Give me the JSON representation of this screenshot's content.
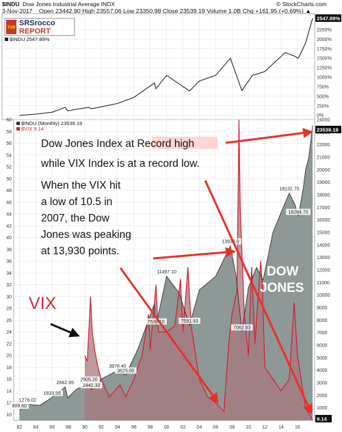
{
  "header": {
    "symbol": "$INDU",
    "name": "Dow Jones Industrial Average INDX",
    "date": "3-Nov-2017",
    "quote": "Open 23442.90  High 23557.06  Low 23350.98  Close 23539.19  Volume 1.0B  Chg +161.95 (+0.69%) ▲",
    "source": "© StockCharts.com",
    "logo_text": "SRSrocco",
    "logo_sub": "REPORT",
    "logo_badge": "TSR"
  },
  "colors": {
    "dow_fill": "#8d9897",
    "dow_line": "#222222",
    "vix_line": "#d21f2e",
    "vix_fill": "#a8787e",
    "arrow": "#e8302a",
    "vix_label": "#d8283a",
    "dow_label": "#ffffff",
    "highlight": "#ffd5d5"
  },
  "chart_data": [
    {
      "type": "line",
      "title": "$INDU 2547.89%",
      "legend": "top-left",
      "grid": true,
      "ylim": [
        -60,
        2600
      ],
      "y_ticks": [
        "0%",
        "250%",
        "500%",
        "750%",
        "1000%",
        "1250%",
        "1500%",
        "1750%",
        "2000%",
        "2250%",
        "2547.89%"
      ],
      "x_ticks": [
        "82",
        "84",
        "86",
        "88",
        "90",
        "92",
        "94",
        "96",
        "98",
        "00",
        "02",
        "04",
        "06",
        "08",
        "10",
        "12",
        "14",
        "16"
      ],
      "series": [
        {
          "name": "$INDU 2547.89%",
          "x": [
            1982.0,
            1984.0,
            1986.0,
            1987.6,
            1987.9,
            1990.5,
            1990.8,
            1994.0,
            1996.0,
            1998.5,
            1998.7,
            2000.0,
            2002.8,
            2004.0,
            2006.0,
            2007.8,
            2009.2,
            2010.5,
            2012.0,
            2013.0,
            2014.5,
            2015.7,
            2016.1,
            2017.0,
            2017.85
          ],
          "values": [
            0,
            30,
            80,
            210,
            120,
            210,
            170,
            310,
            470,
            850,
            700,
            1050,
            640,
            900,
            1050,
            1500,
            650,
            1050,
            1150,
            1350,
            1650,
            1550,
            1500,
            1900,
            2547.89
          ]
        }
      ]
    },
    {
      "type": "area",
      "title": "$INDU (Monthly) 23539.19",
      "legend": "top-left",
      "grid": true,
      "y_left_range": [
        9,
        60
      ],
      "y_left_ticks": [
        "10",
        "12",
        "14",
        "16",
        "18",
        "20",
        "22",
        "24",
        "26",
        "28",
        "30",
        "32",
        "34",
        "36",
        "38",
        "40",
        "42",
        "44",
        "46",
        "48",
        "50",
        "52",
        "54",
        "56",
        "58",
        "60"
      ],
      "y_right_range": [
        0,
        24000
      ],
      "y_right_ticks": [
        "1000",
        "2000",
        "3000",
        "4000",
        "5000",
        "6000",
        "7000",
        "8000",
        "9000",
        "10000",
        "11000",
        "12000",
        "13000",
        "14000",
        "15000",
        "16000",
        "17000",
        "18000",
        "19000",
        "20000",
        "21000",
        "22000",
        "23000",
        "24000"
      ],
      "x_ticks": [
        "82",
        "84",
        "86",
        "88",
        "90",
        "92",
        "94",
        "96",
        "98",
        "00",
        "02",
        "04",
        "06",
        "08",
        "10",
        "12",
        "14",
        "16"
      ],
      "series": [
        {
          "name": "$INDU (Monthly) 23539.19",
          "axis": "right",
          "x": [
            1982.0,
            1983.0,
            1984.5,
            1986.0,
            1987.6,
            1987.9,
            1989.0,
            1990.5,
            1990.8,
            1992.0,
            1994.0,
            1995.0,
            1996.5,
            1998.5,
            1998.7,
            2000.0,
            2001.5,
            2002.8,
            2004.0,
            2006.0,
            2007.8,
            2008.5,
            2009.2,
            2010.0,
            2011.0,
            2011.8,
            2013.0,
            2014.0,
            2015.0,
            2015.7,
            2016.1,
            2016.7,
            2017.0,
            2017.4,
            2017.85
          ],
          "values": [
            808.6,
            1276.02,
            1200,
            1833.55,
            2662.95,
            1800,
            2500,
            2905.2,
            2442.33,
            3300,
            3978.4,
            3625,
            5700,
            9300,
            7539.1,
            11497.1,
            10200,
            7591.93,
            10400,
            11500,
            13930,
            11500,
            7062.93,
            10600,
            12200,
            11200,
            15000,
            16600,
            18132.7,
            17200,
            16284.7,
            18500,
            20000,
            21000,
            23539.19
          ]
        },
        {
          "name": "$VIX 9.14",
          "axis": "left",
          "x": [
            1990.0,
            1990.3,
            1990.7,
            1990.9,
            1991.2,
            1991.6,
            1992.0,
            1993.0,
            1994.3,
            1995.0,
            1996.0,
            1997.0,
            1997.8,
            1998.0,
            1998.7,
            1999.0,
            2000.0,
            2001.0,
            2001.7,
            2002.0,
            2002.6,
            2003.0,
            2004.0,
            2005.0,
            2006.0,
            2007.0,
            2007.6,
            2008.0,
            2008.6,
            2008.85,
            2009.0,
            2009.5,
            2010.0,
            2010.4,
            2010.8,
            2011.5,
            2011.7,
            2012.0,
            2013.0,
            2014.0,
            2015.0,
            2015.6,
            2016.0,
            2017.0,
            2017.85
          ],
          "values": [
            20,
            19,
            30,
            24,
            21,
            18,
            16,
            13,
            15,
            13,
            16,
            20,
            27,
            21,
            32,
            24,
            24,
            25,
            33,
            24,
            35,
            25,
            16,
            13,
            12,
            10.5,
            22,
            27,
            31,
            60,
            45,
            27,
            20,
            35,
            22,
            36,
            32,
            18,
            16,
            14,
            16,
            29,
            20,
            11,
            9.14
          ]
        }
      ],
      "data_labels": [
        "1276.02",
        "1833.55",
        "808.60",
        "2662.95",
        "2905.20",
        "2442.33",
        "3978.40",
        "3625.00",
        "7539.10",
        "11497.10",
        "7591.93",
        "13930.0",
        "7062.93",
        "18132.70",
        "16284.70"
      ],
      "last_value_tags": {
        "dow": "23539.19",
        "vix": "9.14"
      },
      "annotations": {
        "line1": "Dow Jones Index at Record high",
        "line2": "while VIX Index is at a record low.",
        "line3": "When the VIX hit",
        "line4": "a low of 10.5 in",
        "line5": "2007, the Dow",
        "line6": "Jones was peaking",
        "line7": "at 13,930 points.",
        "vix_label": "VIX",
        "dow_label_1": "DOW",
        "dow_label_2": "JONES"
      }
    }
  ]
}
